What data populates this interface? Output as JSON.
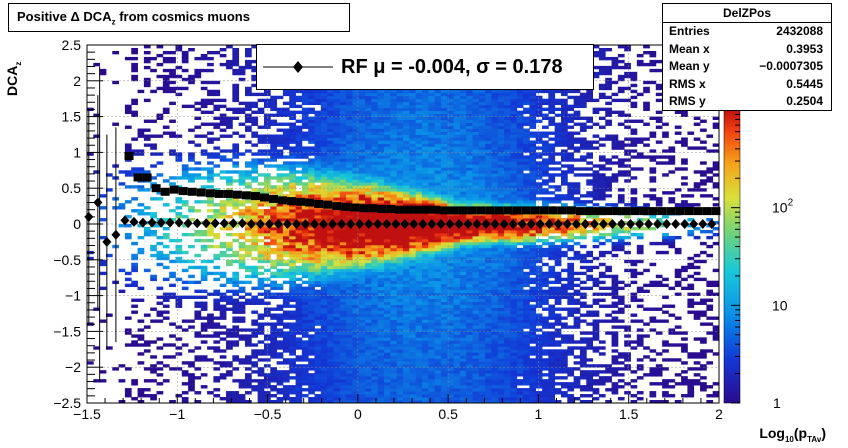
{
  "title": "Positive Δ DCA_z from cosmics muons",
  "title_parts": {
    "main": "Positive Δ DCA",
    "sub": "z",
    "rest": "from cosmics muons"
  },
  "stats": {
    "name": "DelZPos",
    "rows": [
      {
        "key": "Entries",
        "value": "2432088"
      },
      {
        "key": "Mean x",
        "value": "0.3953"
      },
      {
        "key": "Mean y",
        "value": "−0.0007305"
      },
      {
        "key": "RMS x",
        "value": "0.5445"
      },
      {
        "key": "RMS y",
        "value": "0.2504"
      }
    ]
  },
  "legend": {
    "text": "RF μ = -0.004, σ =   0.178"
  },
  "ylabel": {
    "main": "DCA",
    "sub": "z"
  },
  "xlabel": {
    "main": "Log",
    "sub1": "10",
    "mid": "(p",
    "sub2": "TAv",
    "end": ")"
  },
  "colors": {
    "marker": "#000000"
  },
  "chart_data": {
    "type": "heatmap",
    "title": "Positive Δ DCA_z from cosmics muons",
    "xlabel": "Log10(pTAv)",
    "ylabel": "DCA_z",
    "xlim": [
      -1.5,
      2
    ],
    "ylim": [
      -2.5,
      2.5
    ],
    "x_ticks": [
      "−1.5",
      "−1",
      "−0.5",
      "0",
      "0.5",
      "1",
      "1.5",
      "2"
    ],
    "y_ticks": [
      "−2.5",
      "−2",
      "−1.5",
      "−1",
      "−0.5",
      "0",
      "0.5",
      "1",
      "1.5",
      "2",
      "2.5"
    ],
    "z_scale": "log",
    "z_ticks": [
      "1",
      "10",
      "10^2"
    ],
    "z_range": [
      1,
      1000
    ],
    "grid": true,
    "series": [
      {
        "name": "mean",
        "marker": "diamond",
        "x": [
          -1.49,
          -1.44,
          -1.39,
          -1.34,
          -1.29,
          -1.24,
          -1.19,
          -1.14,
          -1.09,
          -1.04,
          -0.99,
          -0.94,
          -0.89,
          -0.84,
          -0.79,
          -0.74,
          -0.69,
          -0.64,
          -0.59,
          -0.54,
          -0.49,
          -0.44,
          -0.39,
          -0.34,
          -0.29,
          -0.24,
          -0.19,
          -0.14,
          -0.09,
          -0.04,
          0.01,
          0.06,
          0.11,
          0.16,
          0.21,
          0.26,
          0.31,
          0.36,
          0.41,
          0.46,
          0.51,
          0.56,
          0.61,
          0.66,
          0.71,
          0.76,
          0.81,
          0.86,
          0.91,
          0.96,
          1.01,
          1.06,
          1.11,
          1.16,
          1.21,
          1.26,
          1.31,
          1.36,
          1.41,
          1.46,
          1.51,
          1.56,
          1.61,
          1.66,
          1.71,
          1.76,
          1.81,
          1.86,
          1.91,
          1.96
        ],
        "y": [
          0.1,
          0.3,
          -0.25,
          -0.15,
          0.05,
          0.03,
          0.02,
          0.02,
          0.02,
          0.02,
          0.02,
          0.01,
          0.01,
          0.01,
          0.01,
          0.01,
          0.01,
          0.01,
          0.0,
          0.0,
          0.0,
          0.0,
          0.0,
          0.0,
          0.0,
          0.0,
          0.0,
          0.0,
          0.0,
          0.0,
          0.0,
          0.0,
          0.0,
          0.0,
          0.0,
          0.0,
          0.0,
          0.0,
          0.0,
          0.0,
          0.0,
          0.0,
          0.0,
          0.0,
          0.0,
          0.0,
          0.0,
          0.0,
          0.0,
          0.0,
          0.0,
          0.0,
          0.0,
          0.0,
          0.0,
          0.0,
          0.0,
          0.0,
          0.0,
          0.0,
          0.0,
          0.0,
          0.0,
          0.0,
          0.0,
          0.0,
          0.0,
          0.0,
          0.0,
          0.0
        ]
      },
      {
        "name": "sigma",
        "marker": "square",
        "x": [
          -1.27,
          -1.22,
          -1.17,
          -1.12,
          -1.07,
          -1.02,
          -0.97,
          -0.92,
          -0.87,
          -0.82,
          -0.77,
          -0.72,
          -0.67,
          -0.62,
          -0.57,
          -0.52,
          -0.47,
          -0.42,
          -0.37,
          -0.32,
          -0.27,
          -0.22,
          -0.17,
          -0.12,
          -0.07,
          -0.02,
          0.03,
          0.08,
          0.13,
          0.18,
          0.23,
          0.28,
          0.33,
          0.38,
          0.43,
          0.48,
          0.53,
          0.58,
          0.63,
          0.68,
          0.73,
          0.78,
          0.83,
          0.88,
          0.93,
          0.98,
          1.03,
          1.08,
          1.13,
          1.18,
          1.23,
          1.28,
          1.33,
          1.38,
          1.43,
          1.48,
          1.53,
          1.58,
          1.63,
          1.68,
          1.73,
          1.78,
          1.83,
          1.88,
          1.93,
          1.98
        ],
        "y": [
          0.95,
          0.65,
          0.65,
          0.5,
          0.45,
          0.48,
          0.46,
          0.45,
          0.44,
          0.43,
          0.42,
          0.42,
          0.41,
          0.4,
          0.39,
          0.37,
          0.35,
          0.33,
          0.32,
          0.31,
          0.3,
          0.28,
          0.27,
          0.25,
          0.24,
          0.23,
          0.22,
          0.22,
          0.21,
          0.21,
          0.2,
          0.2,
          0.2,
          0.2,
          0.2,
          0.19,
          0.19,
          0.19,
          0.19,
          0.19,
          0.19,
          0.19,
          0.19,
          0.19,
          0.19,
          0.19,
          0.19,
          0.19,
          0.19,
          0.19,
          0.18,
          0.18,
          0.18,
          0.18,
          0.18,
          0.18,
          0.18,
          0.18,
          0.18,
          0.18,
          0.18,
          0.18,
          0.18,
          0.18,
          0.18,
          0.18
        ]
      }
    ]
  }
}
